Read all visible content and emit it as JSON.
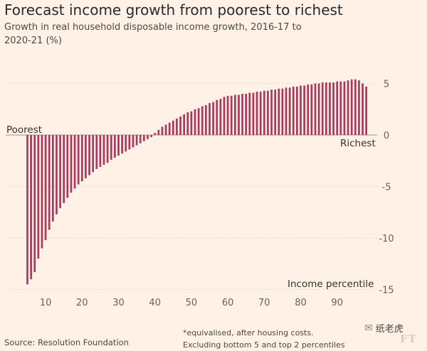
{
  "chart_data": {
    "type": "bar",
    "title": "Forecast income growth from poorest to richest",
    "subtitle": "Growth in real household disposable income growth, 2016-17 to 2020-21 (%)",
    "xlabel": "Income percentile",
    "ylabel": "",
    "x": [
      5,
      6,
      7,
      8,
      9,
      10,
      11,
      12,
      13,
      14,
      15,
      16,
      17,
      18,
      19,
      20,
      21,
      22,
      23,
      24,
      25,
      26,
      27,
      28,
      29,
      30,
      31,
      32,
      33,
      34,
      35,
      36,
      37,
      38,
      39,
      40,
      41,
      42,
      43,
      44,
      45,
      46,
      47,
      48,
      49,
      50,
      51,
      52,
      53,
      54,
      55,
      56,
      57,
      58,
      59,
      60,
      61,
      62,
      63,
      64,
      65,
      66,
      67,
      68,
      69,
      70,
      71,
      72,
      73,
      74,
      75,
      76,
      77,
      78,
      79,
      80,
      81,
      82,
      83,
      84,
      85,
      86,
      87,
      88,
      89,
      90,
      91,
      92,
      93,
      94,
      95,
      96,
      97,
      98
    ],
    "values": [
      -14.5,
      -14.0,
      -13.3,
      -12.0,
      -11.0,
      -10.2,
      -9.2,
      -8.4,
      -7.7,
      -7.1,
      -6.6,
      -6.1,
      -5.6,
      -5.2,
      -4.8,
      -4.5,
      -4.2,
      -3.9,
      -3.6,
      -3.3,
      -3.1,
      -2.9,
      -2.7,
      -2.4,
      -2.2,
      -2.0,
      -1.8,
      -1.6,
      -1.4,
      -1.2,
      -1.0,
      -0.8,
      -0.6,
      -0.4,
      -0.2,
      0.2,
      0.5,
      0.8,
      1.0,
      1.2,
      1.4,
      1.6,
      1.8,
      2.0,
      2.2,
      2.3,
      2.5,
      2.6,
      2.8,
      2.9,
      3.1,
      3.2,
      3.4,
      3.5,
      3.7,
      3.8,
      3.8,
      3.9,
      3.9,
      4.0,
      4.0,
      4.1,
      4.1,
      4.2,
      4.2,
      4.3,
      4.3,
      4.4,
      4.4,
      4.5,
      4.5,
      4.6,
      4.6,
      4.7,
      4.7,
      4.8,
      4.8,
      4.9,
      4.9,
      5.0,
      5.0,
      5.1,
      5.1,
      5.1,
      5.1,
      5.2,
      5.2,
      5.2,
      5.3,
      5.4,
      5.4,
      5.3,
      5.0,
      4.7
    ],
    "ylim": [
      -15,
      5
    ],
    "yticks": [
      "5",
      "0",
      "-5",
      "-10",
      "-15"
    ],
    "yticks_values": [
      5,
      0,
      -5,
      -10,
      -15
    ],
    "xticks": [
      "10",
      "20",
      "30",
      "40",
      "50",
      "60",
      "70",
      "80",
      "90"
    ],
    "xticks_values": [
      10,
      20,
      30,
      40,
      50,
      60,
      70,
      80,
      90
    ],
    "annotations": {
      "poorest": "Poorest",
      "richest": "Richest"
    },
    "grid": true,
    "bar_color": "#a8385e"
  },
  "footer": {
    "source": "Source: Resolution Foundation",
    "note_line1": "*equivalised, after housing costs.",
    "note_line2": "Excluding bottom 5 and top 2 percentiles"
  },
  "watermark": {
    "icon": "wechat-icon",
    "text": "纸老虎",
    "logo": "FT"
  }
}
